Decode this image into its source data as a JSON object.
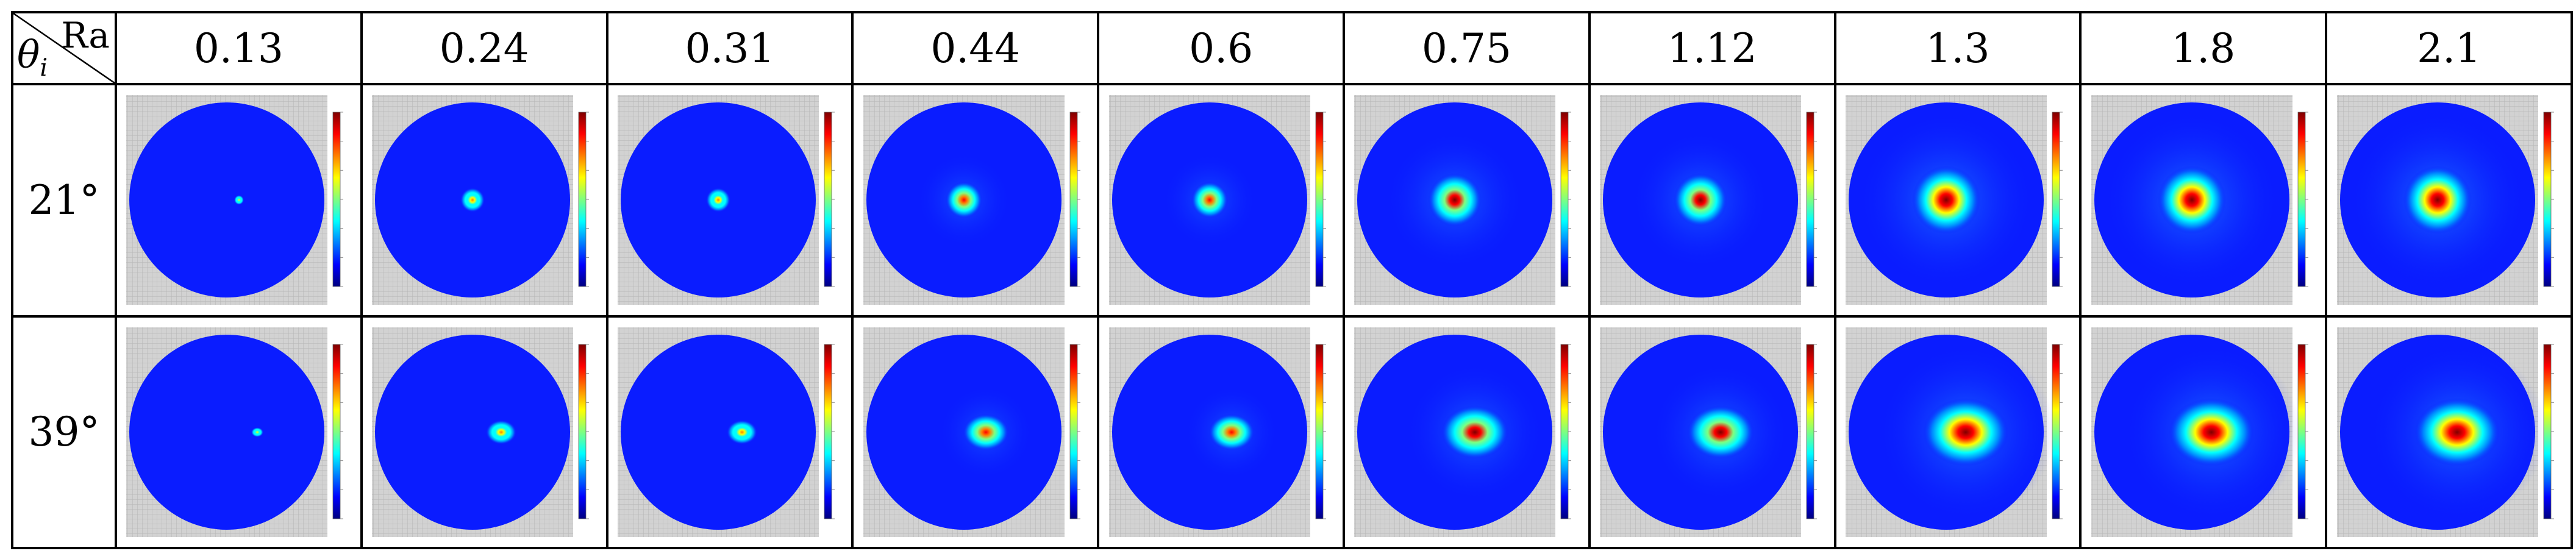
{
  "table": {
    "corner": {
      "col_header": "Ra",
      "row_header_symbol": "θ",
      "row_header_sub": "i"
    },
    "columns": [
      "0.13",
      "0.24",
      "0.31",
      "0.44",
      "0.6",
      "0.75",
      "1.12",
      "1.3",
      "1.8",
      "2.1"
    ],
    "rows": [
      {
        "label": "21°",
        "maps": [
          {
            "ra": "0.13",
            "spot": "tiny"
          },
          {
            "ra": "0.24",
            "spot": "small"
          },
          {
            "ra": "0.31",
            "spot": "small"
          },
          {
            "ra": "0.44",
            "spot": "medium"
          },
          {
            "ra": "0.6",
            "spot": "medium"
          },
          {
            "ra": "0.75",
            "spot": "large"
          },
          {
            "ra": "1.12",
            "spot": "large"
          },
          {
            "ra": "1.3",
            "spot": "very-large"
          },
          {
            "ra": "1.8",
            "spot": "very-large"
          },
          {
            "ra": "2.1",
            "spot": "very-large"
          }
        ]
      },
      {
        "label": "39°",
        "maps": [
          {
            "ra": "0.13",
            "spot": "tiny"
          },
          {
            "ra": "0.24",
            "spot": "small"
          },
          {
            "ra": "0.31",
            "spot": "small"
          },
          {
            "ra": "0.44",
            "spot": "medium"
          },
          {
            "ra": "0.6",
            "spot": "medium"
          },
          {
            "ra": "0.75",
            "spot": "large"
          },
          {
            "ra": "1.12",
            "spot": "large"
          },
          {
            "ra": "1.3",
            "spot": "very-large"
          },
          {
            "ra": "1.8",
            "spot": "very-large"
          },
          {
            "ra": "2.1",
            "spot": "very-large"
          }
        ]
      }
    ],
    "colormap": [
      "#00007f",
      "#0000ff",
      "#007fff",
      "#00ffff",
      "#7fff7f",
      "#ffff00",
      "#ff7f00",
      "#ff0000",
      "#7f0000"
    ],
    "background_color": "#0a1cff"
  }
}
